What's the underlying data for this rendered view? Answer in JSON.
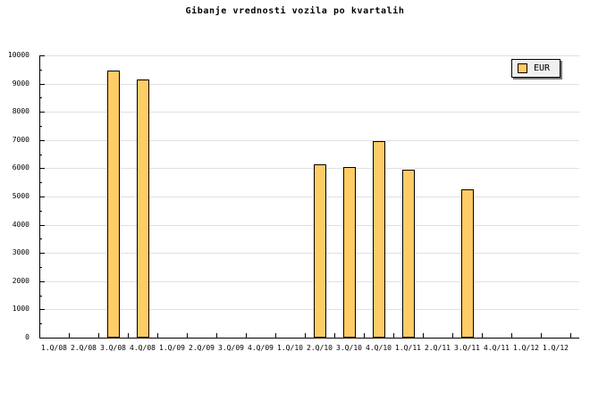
{
  "chart_data": {
    "type": "bar",
    "title": "Gibanje vrednosti vozila po kvartalih",
    "xlabel": "",
    "ylabel": "",
    "categories": [
      "1.Q/08",
      "2.Q/08",
      "3.Q/08",
      "4.Q/08",
      "1.Q/09",
      "2.Q/09",
      "3.Q/09",
      "4.Q/09",
      "1.Q/10",
      "2.Q/10",
      "3.Q/10",
      "4.Q/10",
      "1.Q/11",
      "2.Q/11",
      "3.Q/11",
      "4.Q/11",
      "1.Q/12",
      "1.Q/12"
    ],
    "series": [
      {
        "name": "EUR",
        "values": [
          null,
          null,
          9450,
          9150,
          null,
          null,
          null,
          null,
          null,
          6150,
          6050,
          6950,
          5950,
          null,
          5250,
          null,
          null,
          null
        ]
      }
    ],
    "ylim": [
      0,
      10000
    ],
    "ytick_interval": 1000,
    "ytick_minor_interval": 500,
    "ytick_labels": [
      "0",
      "1000",
      "2000",
      "3000",
      "4000",
      "5000",
      "6000",
      "7000",
      "8000",
      "9000",
      "10000"
    ],
    "grid": true,
    "legend_position": "top-right",
    "colors": {
      "bar_fill": "#FFCC66",
      "bar_border": "#000000",
      "gridline": "#E0E0E0",
      "axis": "#000000",
      "legend_bg": "#F0F0F0",
      "background": "#FFFFFF"
    }
  },
  "legend": {
    "label": "EUR"
  }
}
